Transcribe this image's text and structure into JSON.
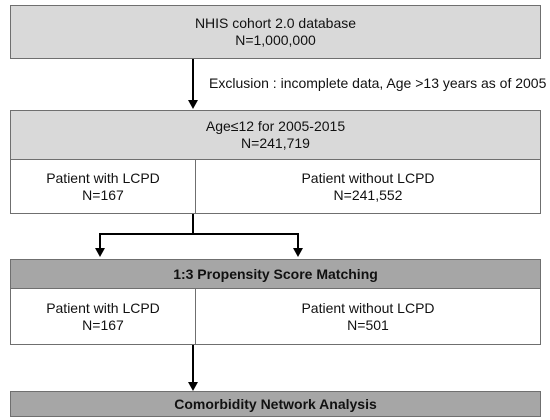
{
  "cohort": {
    "title": "NHIS cohort 2.0 database",
    "count": "N=1,000,000"
  },
  "exclusion": {
    "text": "Exclusion : incomplete data, Age >13 years as of 2005"
  },
  "eligible": {
    "title": "Age≤12 for 2005-2015",
    "count": "N=241,719",
    "with_lcpd": {
      "label": "Patient with LCPD",
      "count": "N=167"
    },
    "without_lcpd": {
      "label": "Patient without LCPD",
      "count": "N=241,552"
    }
  },
  "matching": {
    "title": "1:3 Propensity Score Matching",
    "with_lcpd": {
      "label": "Patient with LCPD",
      "count": "N=167"
    },
    "without_lcpd": {
      "label": "Patient without LCPD",
      "count": "N=501"
    }
  },
  "analysis": {
    "title": "Comorbidity Network Analysis"
  },
  "colors": {
    "header_fill": "#d9d9d9",
    "step_fill": "#a6a6a6",
    "border": "#6f6f6f"
  }
}
